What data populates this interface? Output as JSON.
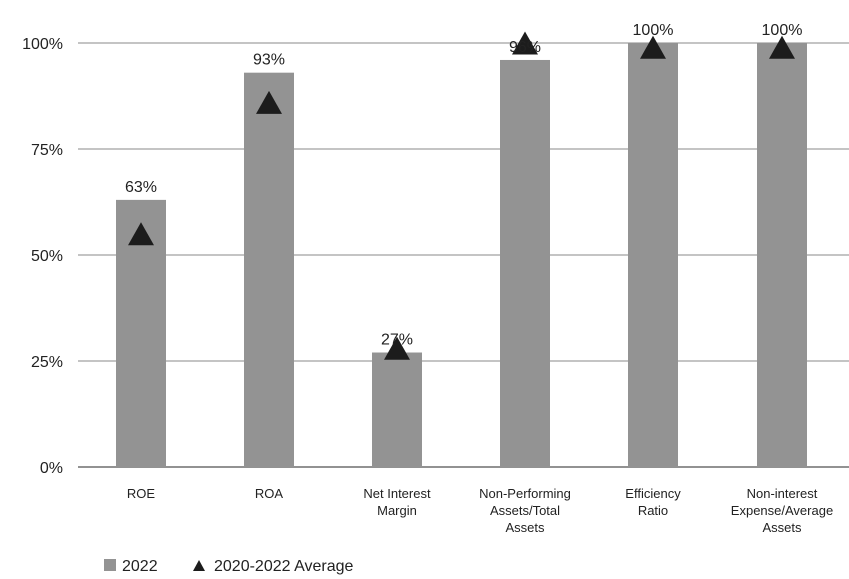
{
  "chart_data": {
    "type": "bar",
    "categories": [
      [
        "ROE"
      ],
      [
        "ROA"
      ],
      [
        "Net Interest",
        "Margin"
      ],
      [
        "Non-Performing",
        "Assets/Total",
        "Assets"
      ],
      [
        "Efficiency",
        "Ratio"
      ],
      [
        "Non-interest",
        "Expense/Average",
        "Assets"
      ]
    ],
    "series": [
      {
        "name": "2022",
        "type": "bar",
        "values": [
          63,
          93,
          27,
          96,
          100,
          100
        ],
        "data_labels": [
          "63%",
          "93%",
          "27%",
          "96%",
          "100%",
          "100%"
        ]
      },
      {
        "name": "2020-2022 Average",
        "type": "marker",
        "values": [
          55,
          86,
          28,
          100,
          99,
          99
        ]
      }
    ],
    "yticks": [
      {
        "value": 0,
        "label": "0%"
      },
      {
        "value": 25,
        "label": "25%"
      },
      {
        "value": 50,
        "label": "50%"
      },
      {
        "value": 75,
        "label": "75%"
      },
      {
        "value": 100,
        "label": "100%"
      }
    ],
    "ylim": [
      0,
      100
    ],
    "grid": true,
    "legend_position": "bottom-left",
    "colors": {
      "bar": "#939393",
      "marker": "#1c1c1c",
      "grid": "#8a8a8a",
      "axis": "#6f6f6f",
      "text": "#222222"
    }
  }
}
